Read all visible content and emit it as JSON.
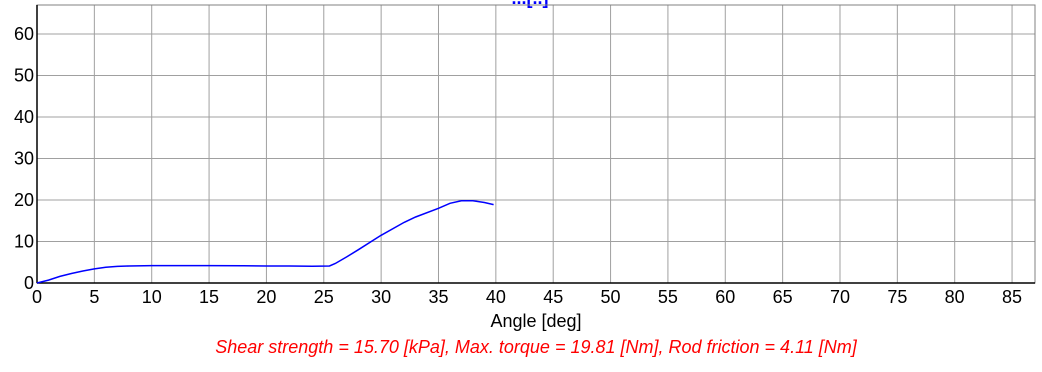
{
  "chart_data": {
    "type": "line",
    "title": "...[..]",
    "xlabel": "Angle [deg]",
    "ylabel": "",
    "xlim": [
      0,
      87
    ],
    "ylim": [
      0,
      67
    ],
    "x_ticks": [
      0,
      5,
      10,
      15,
      20,
      25,
      30,
      35,
      40,
      45,
      50,
      55,
      60,
      65,
      70,
      75,
      80,
      85
    ],
    "y_ticks": [
      0,
      10,
      20,
      30,
      40,
      50,
      60
    ],
    "grid": true,
    "caption": "Shear strength = 15.70 [kPa], Max. torque = 19.81 [Nm], Rod friction = 4.11 [Nm]",
    "series": [
      {
        "color": "#0000ff",
        "x": [
          0,
          1,
          2,
          3,
          4,
          5,
          6,
          7,
          8,
          10,
          12,
          15,
          18,
          20,
          22,
          24,
          25.5,
          26,
          27,
          28,
          30,
          32,
          33,
          35,
          36,
          37,
          38,
          39,
          39.8
        ],
        "y": [
          0,
          0.7,
          1.6,
          2.3,
          2.9,
          3.4,
          3.8,
          4.0,
          4.1,
          4.2,
          4.2,
          4.2,
          4.15,
          4.1,
          4.1,
          4.05,
          4.1,
          4.7,
          6.3,
          8.0,
          11.5,
          14.6,
          15.9,
          18.0,
          19.2,
          19.8,
          19.8,
          19.4,
          18.9
        ]
      }
    ]
  }
}
